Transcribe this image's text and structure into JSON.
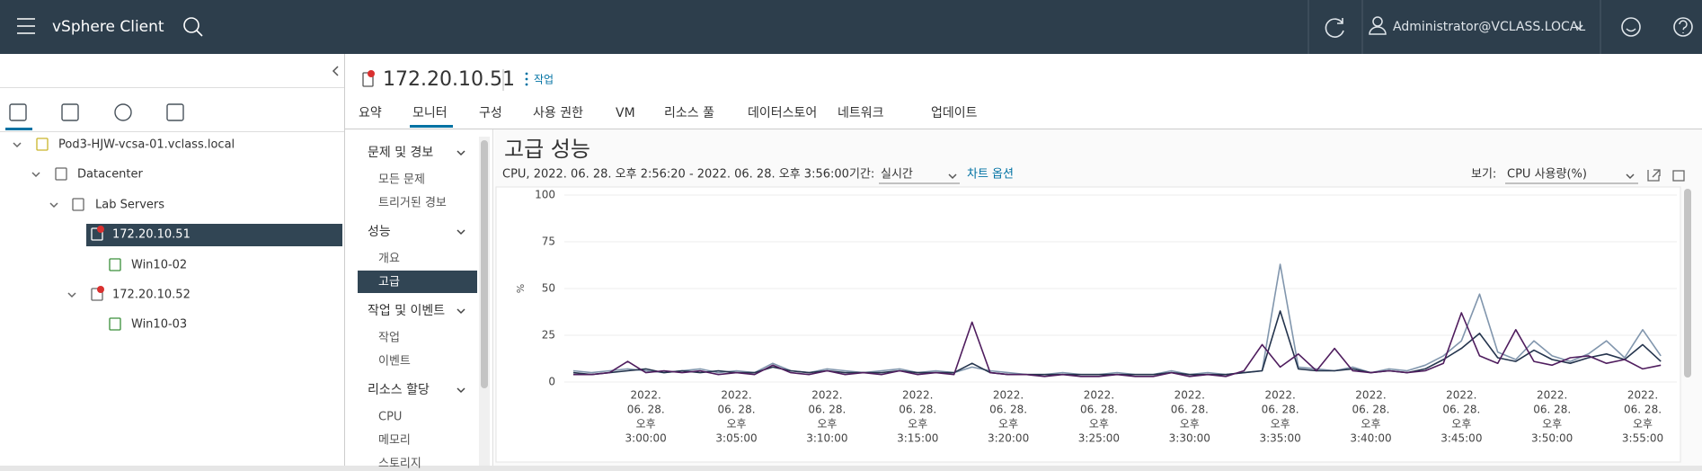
{
  "header": {
    "app_name": "vSphere Client",
    "user": "Administrator@VCLASS.LOCAL"
  },
  "tree": {
    "items": [
      "Pod3-HJW-vcsa-01.vclass.local",
      "Datacenter",
      "Lab Servers",
      "172.20.10.51",
      "Win10-02",
      "172.20.10.52",
      "Win10-03"
    ]
  },
  "object": {
    "name": "172.20.10.51",
    "actions": "작업"
  },
  "tabs": [
    "요약",
    "모니터",
    "구성",
    "사용 권한",
    "VM",
    "리소스 풀",
    "데이터스토어",
    "네트워크",
    "업데이트"
  ],
  "nav": [
    {
      "title": "문제 및 경보",
      "items": [
        "모든 문제",
        "트리거된 경보"
      ]
    },
    {
      "title": "성능",
      "items": [
        "개요",
        "고급"
      ]
    },
    {
      "title": "작업 및 이벤트",
      "items": [
        "작업",
        "이벤트"
      ]
    },
    {
      "title": "리소스 할당",
      "items": [
        "CPU",
        "메모리",
        "스토리지"
      ]
    }
  ],
  "panel": {
    "title": "고급 성능",
    "range": "CPU, 2022. 06. 28. 오후 2:56:20 - 2022. 06. 28. 오후 3:56:00",
    "period_label": "기간:",
    "period": "실시간",
    "chart_options": "차트 옵션",
    "view_label": "보기:",
    "view": "CPU 사용량(%)"
  },
  "chart_data": {
    "type": "line",
    "y_label": "%",
    "categories": [
      null,
      null,
      null,
      null,
      [
        "2022.",
        "06. 28.",
        "오후",
        "3:00:00"
      ],
      null,
      null,
      null,
      null,
      [
        "2022.",
        "06. 28.",
        "오후",
        "3:05:00"
      ],
      null,
      null,
      null,
      null,
      [
        "2022.",
        "06. 28.",
        "오후",
        "3:10:00"
      ],
      null,
      null,
      null,
      null,
      [
        "2022.",
        "06. 28.",
        "오후",
        "3:15:00"
      ],
      null,
      null,
      null,
      null,
      [
        "2022.",
        "06. 28.",
        "오후",
        "3:20:00"
      ],
      null,
      null,
      null,
      null,
      [
        "2022.",
        "06. 28.",
        "오후",
        "3:25:00"
      ],
      null,
      null,
      null,
      null,
      [
        "2022.",
        "06. 28.",
        "오후",
        "3:30:00"
      ],
      null,
      null,
      null,
      null,
      [
        "2022.",
        "06. 28.",
        "오후",
        "3:35:00"
      ],
      null,
      null,
      null,
      null,
      [
        "2022.",
        "06. 28.",
        "오후",
        "3:40:00"
      ],
      null,
      null,
      null,
      null,
      [
        "2022.",
        "06. 28.",
        "오후",
        "3:45:00"
      ],
      null,
      null,
      null,
      null,
      [
        "2022.",
        "06. 28.",
        "오후",
        "3:50:00"
      ],
      null,
      null,
      null,
      null,
      [
        "2022.",
        "06. 28.",
        "오후",
        "3:55:00"
      ],
      null
    ],
    "series": [
      {
        "color": "#8196ad",
        "values": [
          6,
          5,
          6,
          7,
          6,
          5,
          6,
          7,
          5,
          6,
          5,
          10,
          6,
          5,
          7,
          6,
          5,
          6,
          7,
          5,
          6,
          5,
          8,
          6,
          5,
          4,
          4,
          5,
          4,
          4,
          5,
          4,
          4,
          6,
          4,
          5,
          4,
          5,
          6,
          63,
          8,
          7,
          6,
          8,
          5,
          7,
          6,
          9,
          14,
          22,
          47,
          16,
          12,
          22,
          14,
          11,
          15,
          22,
          13,
          28,
          14
        ]
      },
      {
        "color": "#24344d",
        "values": [
          5,
          4,
          5,
          6,
          7,
          5,
          6,
          5,
          6,
          5,
          5,
          8,
          6,
          5,
          6,
          5,
          5,
          5,
          6,
          5,
          5,
          5,
          10,
          5,
          4,
          4,
          4,
          4,
          4,
          4,
          4,
          4,
          4,
          5,
          4,
          4,
          4,
          5,
          6,
          38,
          7,
          6,
          6,
          7,
          5,
          6,
          5,
          7,
          12,
          18,
          26,
          13,
          11,
          17,
          12,
          10,
          13,
          15,
          12,
          20,
          11
        ]
      },
      {
        "color": "#4f1d5e",
        "values": [
          4,
          4,
          5,
          11,
          5,
          6,
          5,
          6,
          4,
          5,
          4,
          9,
          5,
          4,
          6,
          4,
          5,
          4,
          6,
          4,
          5,
          4,
          32,
          5,
          4,
          4,
          3,
          4,
          3,
          3,
          4,
          3,
          3,
          5,
          3,
          4,
          3,
          6,
          20,
          8,
          15,
          6,
          18,
          6,
          5,
          6,
          5,
          6,
          10,
          37,
          14,
          10,
          28,
          11,
          9,
          13,
          14,
          10,
          12,
          7,
          9
        ]
      }
    ],
    "ylim": [
      0,
      100
    ],
    "yticks": [
      0,
      25,
      50,
      75,
      100
    ],
    "grid": true
  }
}
